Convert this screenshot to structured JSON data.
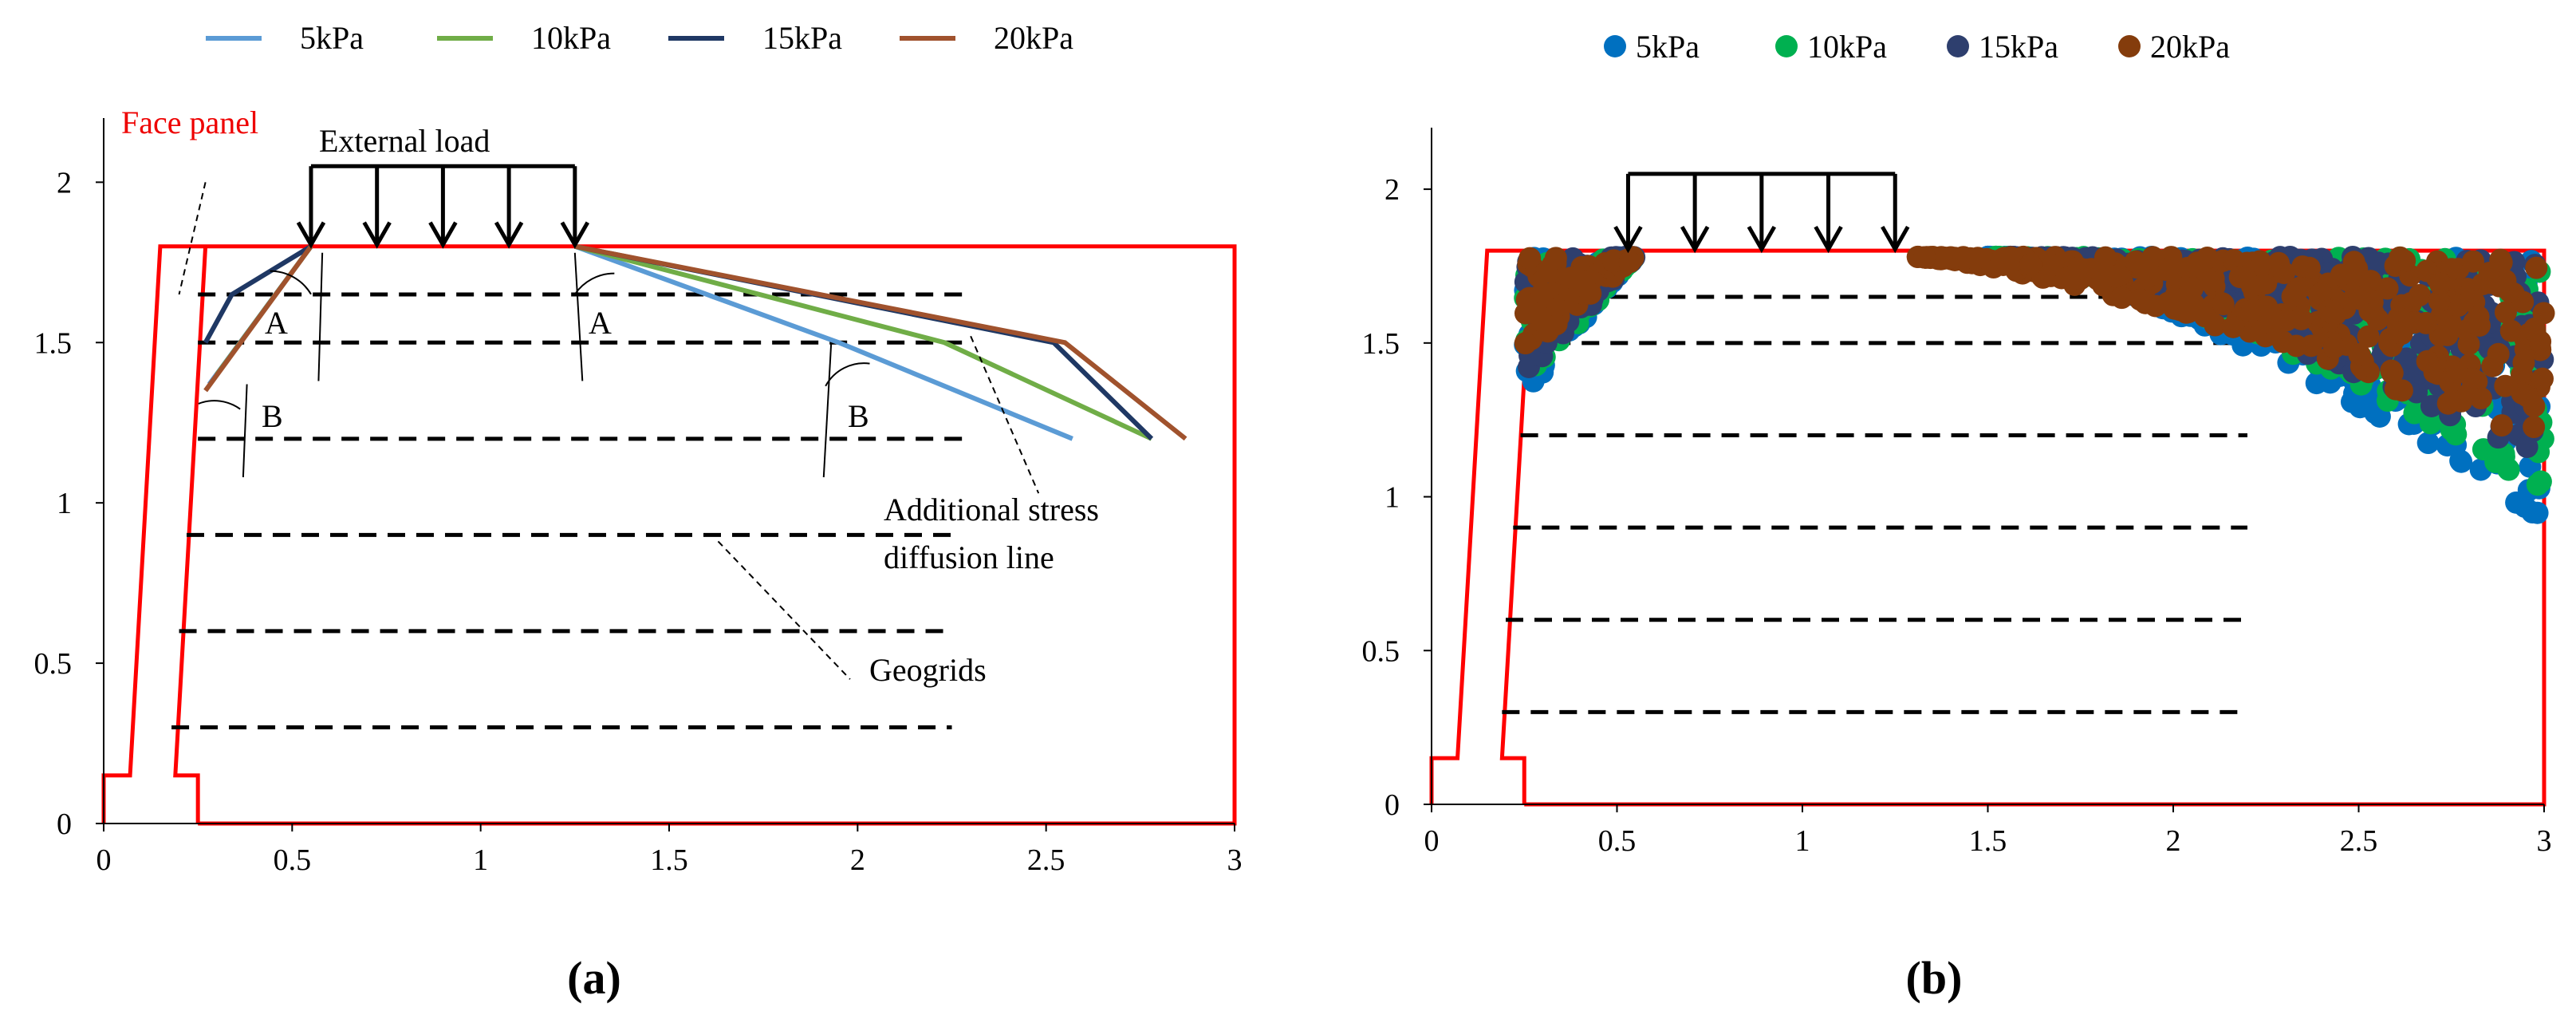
{
  "colors": {
    "5kPa": "#5b9bd5",
    "10kPa": "#70ad47",
    "15kPa": "#1f3864",
    "20kPa": "#a0522d",
    "dot_5kPa": "#0070c0",
    "dot_10kPa": "#00b050",
    "dot_15kPa": "#2e3f6e",
    "dot_20kPa": "#843c0c",
    "wall": "#ff0000",
    "geogrid": "#000000"
  },
  "captions": {
    "a": "(a)",
    "b": "(b)"
  },
  "chart_data": [
    {
      "id": "a",
      "type": "line",
      "xlim": [
        0,
        3
      ],
      "ylim": [
        0,
        2.2
      ],
      "xticks": [
        0,
        0.5,
        1,
        1.5,
        2,
        2.5,
        3
      ],
      "xtick_labels": [
        "0",
        "0.5",
        "1",
        "1.5",
        "2",
        "2.5",
        "3"
      ],
      "yticks": [
        0,
        0.5,
        1,
        1.5,
        2
      ],
      "ytick_labels": [
        "0",
        "0.5",
        "1",
        "1.5",
        "2"
      ],
      "legend": [
        "5kPa",
        "10kPa",
        "15kPa",
        "20kPa"
      ],
      "legend_position": "top",
      "series": [
        {
          "name": "5kPa",
          "left": [
            [
              0.55,
              1.8
            ],
            [
              0.28,
              1.37
            ]
          ],
          "right": [
            [
              1.25,
              1.8
            ],
            [
              1.95,
              1.5
            ],
            [
              2.57,
              1.2
            ]
          ]
        },
        {
          "name": "10kPa",
          "left": [
            [
              0.55,
              1.8
            ],
            [
              0.3,
              1.4
            ]
          ],
          "right": [
            [
              1.25,
              1.8
            ],
            [
              2.23,
              1.5
            ],
            [
              2.78,
              1.2
            ]
          ]
        },
        {
          "name": "15kPa",
          "left": [
            [
              0.55,
              1.8
            ],
            [
              0.34,
              1.65
            ],
            [
              0.27,
              1.5
            ]
          ],
          "right": [
            [
              1.25,
              1.8
            ],
            [
              2.52,
              1.5
            ],
            [
              2.78,
              1.2
            ]
          ]
        },
        {
          "name": "20kPa",
          "left": [
            [
              0.55,
              1.8
            ],
            [
              0.27,
              1.35
            ]
          ],
          "right": [
            [
              1.25,
              1.8
            ],
            [
              2.55,
              1.5
            ],
            [
              2.87,
              1.2
            ]
          ]
        }
      ],
      "geogrids": [
        {
          "y": 1.65,
          "x_start": 0.25,
          "x_end": 2.3
        },
        {
          "y": 1.5,
          "x_start": 0.25,
          "x_end": 2.3
        },
        {
          "y": 1.2,
          "x_start": 0.25,
          "x_end": 2.3
        },
        {
          "y": 0.9,
          "x_start": 0.22,
          "x_end": 2.25
        },
        {
          "y": 0.6,
          "x_start": 0.2,
          "x_end": 2.25
        },
        {
          "y": 0.3,
          "x_start": 0.18,
          "x_end": 2.25
        }
      ],
      "load": {
        "x_start": 0.55,
        "x_end": 1.25,
        "arrows": 5
      },
      "annotations": {
        "face_panel": "Face panel",
        "external_load": "External load",
        "angle_a_left": "A",
        "angle_a_right": "A",
        "angle_b_left": "B",
        "angle_b_right": "B",
        "stress_line_1": "Additional stress",
        "stress_line_2": "diffusion line",
        "geogrids": "Geogrids"
      }
    },
    {
      "id": "b",
      "type": "scatter",
      "xlim": [
        0,
        3
      ],
      "ylim": [
        0,
        2.2
      ],
      "xticks": [
        0,
        0.5,
        1,
        1.5,
        2,
        2.5,
        3
      ],
      "xtick_labels": [
        "0",
        "0.5",
        "1",
        "1.5",
        "2",
        "2.5",
        "3"
      ],
      "yticks": [
        0,
        0.5,
        1,
        1.5,
        2
      ],
      "ytick_labels": [
        "0",
        "0.5",
        "1",
        "1.5",
        "2"
      ],
      "legend": [
        "5kPa",
        "10kPa",
        "15kPa",
        "20kPa"
      ],
      "legend_position": "top",
      "series": [
        {
          "name": "5kPa",
          "left_min_y": 1.33,
          "right_start_x": 1.5,
          "right_end_min_y": 0.92
        },
        {
          "name": "10kPa",
          "left_min_y": 1.36,
          "right_start_x": 1.52,
          "right_end_min_y": 1.02
        },
        {
          "name": "15kPa",
          "left_min_y": 1.39,
          "right_start_x": 1.55,
          "right_end_min_y": 1.07
        },
        {
          "name": "20kPa",
          "left_min_y": 1.45,
          "right_start_x": 1.3,
          "right_end_min_y": 1.15
        }
      ],
      "geogrids": [
        {
          "y": 1.65,
          "x_start": 0.25,
          "x_end": 2.2
        },
        {
          "y": 1.5,
          "x_start": 0.25,
          "x_end": 2.2
        },
        {
          "y": 1.2,
          "x_start": 0.24,
          "x_end": 2.2
        },
        {
          "y": 0.9,
          "x_start": 0.22,
          "x_end": 2.2
        },
        {
          "y": 0.6,
          "x_start": 0.2,
          "x_end": 2.2
        },
        {
          "y": 0.3,
          "x_start": 0.19,
          "x_end": 2.2
        }
      ],
      "load": {
        "x_start": 0.53,
        "x_end": 1.25,
        "arrows": 5
      }
    }
  ]
}
